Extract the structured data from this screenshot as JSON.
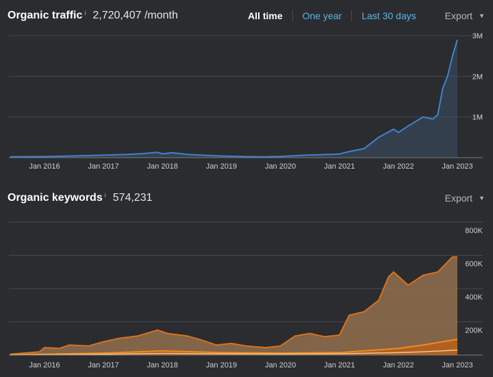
{
  "traffic": {
    "title": "Organic traffic",
    "info": "i",
    "metric": "2,720,407 /month",
    "tabs": [
      {
        "label": "All time",
        "active": true
      },
      {
        "label": "One year",
        "active": false
      },
      {
        "label": "Last 30 days",
        "active": false
      }
    ],
    "export_label": "Export",
    "caret": "▼"
  },
  "keywords": {
    "title": "Organic keywords",
    "info": "i",
    "metric": "574,231",
    "export_label": "Export",
    "caret": "▼"
  },
  "colors": {
    "traffic_line": "#3d84cf",
    "traffic_fill": "#3d5068",
    "keywords_top_line": "#d9721c",
    "keywords_top_fill": "#8c6a4c",
    "keywords_mid_line": "#f28a1c",
    "keywords_mid_fill": "#b5611e",
    "keywords_low_line": "#f7c489",
    "grid": "#47484c",
    "axis": "#7a7a7a"
  },
  "chart_data": [
    {
      "type": "line",
      "title": "Organic traffic",
      "x_ticks": [
        "Jan 2016",
        "Jan 2017",
        "Jan 2018",
        "Jan 2019",
        "Jan 2020",
        "Jan 2021",
        "Jan 2022",
        "Jan 2023"
      ],
      "y_ticks": [
        "1M",
        "2M",
        "3M"
      ],
      "ylim": [
        0,
        3000000
      ],
      "grid": true,
      "series": [
        {
          "points": [
            [
              "2015-06",
              20000
            ],
            [
              "2016-01",
              25000
            ],
            [
              "2016-06",
              40000
            ],
            [
              "2017-01",
              60000
            ],
            [
              "2017-06",
              80000
            ],
            [
              "2017-09",
              100000
            ],
            [
              "2017-12",
              130000
            ],
            [
              "2018-01",
              95000
            ],
            [
              "2018-03",
              120000
            ],
            [
              "2018-06",
              80000
            ],
            [
              "2018-09",
              60000
            ],
            [
              "2019-01",
              40000
            ],
            [
              "2019-06",
              25000
            ],
            [
              "2019-10",
              20000
            ],
            [
              "2020-01",
              30000
            ],
            [
              "2020-06",
              60000
            ],
            [
              "2020-09",
              70000
            ],
            [
              "2021-01",
              90000
            ],
            [
              "2021-03",
              150000
            ],
            [
              "2021-06",
              220000
            ],
            [
              "2021-09",
              500000
            ],
            [
              "2021-12",
              700000
            ],
            [
              "2022-01",
              620000
            ],
            [
              "2022-03",
              780000
            ],
            [
              "2022-06",
              1000000
            ],
            [
              "2022-08",
              950000
            ],
            [
              "2022-09",
              1050000
            ],
            [
              "2022-10",
              1700000
            ],
            [
              "2022-11",
              2000000
            ],
            [
              "2022-12",
              2500000
            ],
            [
              "2023-01",
              2900000
            ]
          ]
        }
      ]
    },
    {
      "type": "area",
      "title": "Organic keywords",
      "x_ticks": [
        "Jan 2016",
        "Jan 2017",
        "Jan 2018",
        "Jan 2019",
        "Jan 2020",
        "Jan 2021",
        "Jan 2022",
        "Jan 2023"
      ],
      "y_ticks": [
        "200K",
        "400K",
        "600K",
        "800K"
      ],
      "ylim": [
        0,
        800000
      ],
      "grid": true,
      "series": [
        {
          "points": [
            [
              "2015-06",
              5000
            ],
            [
              "2015-12",
              20000
            ],
            [
              "2016-01",
              45000
            ],
            [
              "2016-04",
              40000
            ],
            [
              "2016-06",
              60000
            ],
            [
              "2016-10",
              55000
            ],
            [
              "2017-01",
              80000
            ],
            [
              "2017-04",
              100000
            ],
            [
              "2017-08",
              115000
            ],
            [
              "2017-12",
              150000
            ],
            [
              "2018-02",
              130000
            ],
            [
              "2018-06",
              115000
            ],
            [
              "2018-09",
              90000
            ],
            [
              "2018-12",
              60000
            ],
            [
              "2019-03",
              70000
            ],
            [
              "2019-06",
              55000
            ],
            [
              "2019-10",
              45000
            ],
            [
              "2020-01",
              55000
            ],
            [
              "2020-04",
              115000
            ],
            [
              "2020-07",
              130000
            ],
            [
              "2020-10",
              110000
            ],
            [
              "2021-01",
              120000
            ],
            [
              "2021-03",
              240000
            ],
            [
              "2021-06",
              260000
            ],
            [
              "2021-09",
              330000
            ],
            [
              "2021-11",
              470000
            ],
            [
              "2021-12",
              500000
            ],
            [
              "2022-03",
              420000
            ],
            [
              "2022-06",
              480000
            ],
            [
              "2022-09",
              500000
            ],
            [
              "2022-12",
              590000
            ],
            [
              "2023-01",
              590000
            ]
          ]
        },
        {
          "points": [
            [
              "2015-06",
              2000
            ],
            [
              "2016-01",
              5000
            ],
            [
              "2017-01",
              12000
            ],
            [
              "2018-01",
              25000
            ],
            [
              "2019-01",
              15000
            ],
            [
              "2020-01",
              12000
            ],
            [
              "2021-01",
              15000
            ],
            [
              "2021-06",
              25000
            ],
            [
              "2022-01",
              40000
            ],
            [
              "2022-06",
              60000
            ],
            [
              "2023-01",
              95000
            ]
          ]
        },
        {
          "points": [
            [
              "2015-06",
              500
            ],
            [
              "2016-01",
              2000
            ],
            [
              "2017-01",
              5000
            ],
            [
              "2018-01",
              10000
            ],
            [
              "2019-01",
              8000
            ],
            [
              "2020-01",
              6000
            ],
            [
              "2021-01",
              8000
            ],
            [
              "2022-01",
              15000
            ],
            [
              "2022-06",
              20000
            ],
            [
              "2023-01",
              30000
            ]
          ]
        }
      ]
    }
  ]
}
